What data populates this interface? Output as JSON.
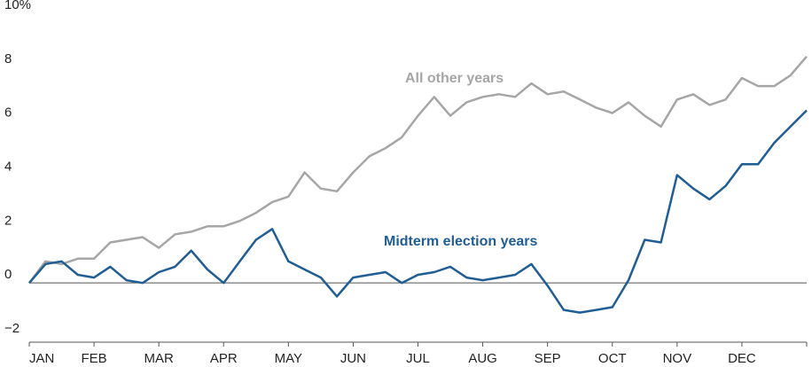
{
  "chart_data": {
    "type": "line",
    "title": "",
    "xlabel": "",
    "ylabel": "",
    "ylim": [
      -2,
      10
    ],
    "y_ticks": [
      "10%",
      "8",
      "6",
      "4",
      "2",
      "0",
      "−2"
    ],
    "y_tick_values": [
      10,
      8,
      6,
      4,
      2,
      0,
      -2
    ],
    "categories": [
      "JAN",
      "FEB",
      "MAR",
      "APR",
      "MAY",
      "JUN",
      "JUL",
      "AUG",
      "SEP",
      "OCT",
      "NOV",
      "DEC"
    ],
    "grid": false,
    "zero_line": true,
    "series": [
      {
        "name": "All other years",
        "color": "#a6a6a6",
        "x": [
          0,
          0.25,
          0.5,
          0.75,
          1.0,
          1.25,
          1.5,
          1.75,
          2.0,
          2.25,
          2.5,
          2.75,
          3.0,
          3.25,
          3.5,
          3.75,
          4.0,
          4.25,
          4.5,
          4.75,
          5.0,
          5.25,
          5.5,
          5.75,
          6.0,
          6.25,
          6.5,
          6.75,
          7.0,
          7.25,
          7.5,
          7.75,
          8.0,
          8.25,
          8.5,
          8.75,
          9.0,
          9.25,
          9.5,
          9.75,
          10.0,
          10.25,
          10.5,
          10.75,
          11.0,
          11.25,
          11.5,
          11.75,
          12.0
        ],
        "values": [
          0.0,
          0.8,
          0.7,
          0.9,
          0.9,
          1.5,
          1.6,
          1.7,
          1.3,
          1.8,
          1.9,
          2.1,
          2.1,
          2.3,
          2.6,
          3.0,
          3.2,
          4.1,
          3.5,
          3.4,
          4.1,
          4.7,
          5.0,
          5.4,
          6.2,
          6.9,
          6.2,
          6.7,
          6.9,
          7.0,
          6.9,
          7.4,
          7.0,
          7.1,
          6.8,
          6.5,
          6.3,
          6.7,
          6.2,
          5.8,
          6.8,
          7.0,
          6.6,
          6.8,
          7.6,
          7.3,
          7.3,
          7.7,
          8.4
        ]
      },
      {
        "name": "Midterm election years",
        "color": "#1f5d94",
        "x": [
          0,
          0.25,
          0.5,
          0.75,
          1.0,
          1.25,
          1.5,
          1.75,
          2.0,
          2.25,
          2.5,
          2.75,
          3.0,
          3.25,
          3.5,
          3.75,
          4.0,
          4.25,
          4.5,
          4.75,
          5.0,
          5.25,
          5.5,
          5.75,
          6.0,
          6.25,
          6.5,
          6.75,
          7.0,
          7.25,
          7.5,
          7.75,
          8.0,
          8.25,
          8.5,
          8.75,
          9.0,
          9.25,
          9.5,
          9.75,
          10.0,
          10.25,
          10.5,
          10.75,
          11.0,
          11.25,
          11.5,
          11.75,
          12.0
        ],
        "values": [
          0.0,
          0.7,
          0.8,
          0.3,
          0.2,
          0.6,
          0.1,
          0.0,
          0.4,
          0.6,
          1.2,
          0.5,
          0.0,
          0.8,
          1.6,
          2.0,
          0.8,
          0.5,
          0.2,
          -0.5,
          0.2,
          0.3,
          0.4,
          0.0,
          0.3,
          0.4,
          0.6,
          0.2,
          0.1,
          0.2,
          0.3,
          0.7,
          -0.1,
          -1.0,
          -1.1,
          -1.0,
          -0.9,
          0.1,
          1.6,
          1.5,
          4.0,
          3.5,
          3.1,
          3.6,
          4.4,
          4.4,
          5.2,
          5.8,
          6.4
        ]
      }
    ]
  }
}
